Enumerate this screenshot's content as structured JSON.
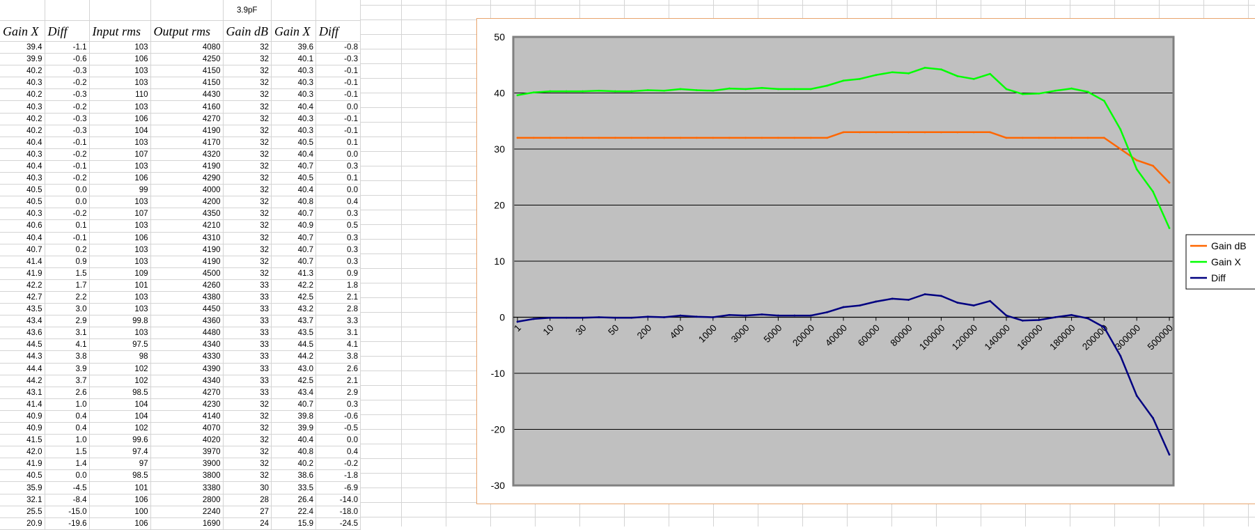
{
  "sheet": {
    "caption": "3.9pF",
    "headers": [
      "Gain X",
      "Diff",
      "Input rms",
      "Output rms",
      "Gain dB",
      "Gain X",
      "Diff"
    ],
    "rows": [
      [
        "39.4",
        "-1.1",
        "103",
        "4080",
        "32",
        "39.6",
        "-0.8"
      ],
      [
        "39.9",
        "-0.6",
        "106",
        "4250",
        "32",
        "40.1",
        "-0.3"
      ],
      [
        "40.2",
        "-0.3",
        "103",
        "4150",
        "32",
        "40.3",
        "-0.1"
      ],
      [
        "40.3",
        "-0.2",
        "103",
        "4150",
        "32",
        "40.3",
        "-0.1"
      ],
      [
        "40.2",
        "-0.3",
        "110",
        "4430",
        "32",
        "40.3",
        "-0.1"
      ],
      [
        "40.3",
        "-0.2",
        "103",
        "4160",
        "32",
        "40.4",
        "0.0"
      ],
      [
        "40.2",
        "-0.3",
        "106",
        "4270",
        "32",
        "40.3",
        "-0.1"
      ],
      [
        "40.2",
        "-0.3",
        "104",
        "4190",
        "32",
        "40.3",
        "-0.1"
      ],
      [
        "40.4",
        "-0.1",
        "103",
        "4170",
        "32",
        "40.5",
        "0.1"
      ],
      [
        "40.3",
        "-0.2",
        "107",
        "4320",
        "32",
        "40.4",
        "0.0"
      ],
      [
        "40.4",
        "-0.1",
        "103",
        "4190",
        "32",
        "40.7",
        "0.3"
      ],
      [
        "40.3",
        "-0.2",
        "106",
        "4290",
        "32",
        "40.5",
        "0.1"
      ],
      [
        "40.5",
        "0.0",
        "99",
        "4000",
        "32",
        "40.4",
        "0.0"
      ],
      [
        "40.5",
        "0.0",
        "103",
        "4200",
        "32",
        "40.8",
        "0.4"
      ],
      [
        "40.3",
        "-0.2",
        "107",
        "4350",
        "32",
        "40.7",
        "0.3"
      ],
      [
        "40.6",
        "0.1",
        "103",
        "4210",
        "32",
        "40.9",
        "0.5"
      ],
      [
        "40.4",
        "-0.1",
        "106",
        "4310",
        "32",
        "40.7",
        "0.3"
      ],
      [
        "40.7",
        "0.2",
        "103",
        "4190",
        "32",
        "40.7",
        "0.3"
      ],
      [
        "41.4",
        "0.9",
        "103",
        "4190",
        "32",
        "40.7",
        "0.3"
      ],
      [
        "41.9",
        "1.5",
        "109",
        "4500",
        "32",
        "41.3",
        "0.9"
      ],
      [
        "42.2",
        "1.7",
        "101",
        "4260",
        "33",
        "42.2",
        "1.8"
      ],
      [
        "42.7",
        "2.2",
        "103",
        "4380",
        "33",
        "42.5",
        "2.1"
      ],
      [
        "43.5",
        "3.0",
        "103",
        "4450",
        "33",
        "43.2",
        "2.8"
      ],
      [
        "43.4",
        "2.9",
        "99.8",
        "4360",
        "33",
        "43.7",
        "3.3"
      ],
      [
        "43.6",
        "3.1",
        "103",
        "4480",
        "33",
        "43.5",
        "3.1"
      ],
      [
        "44.5",
        "4.1",
        "97.5",
        "4340",
        "33",
        "44.5",
        "4.1"
      ],
      [
        "44.3",
        "3.8",
        "98",
        "4330",
        "33",
        "44.2",
        "3.8"
      ],
      [
        "44.4",
        "3.9",
        "102",
        "4390",
        "33",
        "43.0",
        "2.6"
      ],
      [
        "44.2",
        "3.7",
        "102",
        "4340",
        "33",
        "42.5",
        "2.1"
      ],
      [
        "43.1",
        "2.6",
        "98.5",
        "4270",
        "33",
        "43.4",
        "2.9"
      ],
      [
        "41.4",
        "1.0",
        "104",
        "4230",
        "32",
        "40.7",
        "0.3"
      ],
      [
        "40.9",
        "0.4",
        "104",
        "4140",
        "32",
        "39.8",
        "-0.6"
      ],
      [
        "40.9",
        "0.4",
        "102",
        "4070",
        "32",
        "39.9",
        "-0.5"
      ],
      [
        "41.5",
        "1.0",
        "99.6",
        "4020",
        "32",
        "40.4",
        "0.0"
      ],
      [
        "42.0",
        "1.5",
        "97.4",
        "3970",
        "32",
        "40.8",
        "0.4"
      ],
      [
        "41.9",
        "1.4",
        "97",
        "3900",
        "32",
        "40.2",
        "-0.2"
      ],
      [
        "40.5",
        "0.0",
        "98.5",
        "3800",
        "32",
        "38.6",
        "-1.8"
      ],
      [
        "35.9",
        "-4.5",
        "101",
        "3380",
        "30",
        "33.5",
        "-6.9"
      ],
      [
        "32.1",
        "-8.4",
        "106",
        "2800",
        "28",
        "26.4",
        "-14.0"
      ],
      [
        "25.5",
        "-15.0",
        "100",
        "2240",
        "27",
        "22.4",
        "-18.0"
      ],
      [
        "20.9",
        "-19.6",
        "106",
        "1690",
        "24",
        "15.9",
        "-24.5"
      ]
    ]
  },
  "colors": {
    "plot_bg": "#c0c0c0",
    "gain_db": "#ff6600",
    "gain_x": "#00ff00",
    "diff": "#000080",
    "chart_border": "#e8a46c"
  },
  "chart_data": {
    "type": "line",
    "ylim": [
      -30,
      50
    ],
    "yticks": [
      "50",
      "40",
      "30",
      "20",
      "10",
      "0",
      "-10",
      "-20",
      "-30"
    ],
    "xtick_labels": [
      "1",
      "10",
      "30",
      "50",
      "200",
      "400",
      "1000",
      "3000",
      "5000",
      "20000",
      "40000",
      "60000",
      "80000",
      "100000",
      "120000",
      "140000",
      "160000",
      "180000",
      "200000",
      "300000",
      "500000"
    ],
    "grid": "horizontal",
    "legend_position": "right",
    "series": [
      {
        "name": "Gain dB",
        "values": [
          32,
          32,
          32,
          32,
          32,
          32,
          32,
          32,
          32,
          32,
          32,
          32,
          32,
          32,
          32,
          32,
          32,
          32,
          32,
          32,
          33,
          33,
          33,
          33,
          33,
          33,
          33,
          33,
          33,
          33,
          32,
          32,
          32,
          32,
          32,
          32,
          32,
          30,
          28,
          27,
          24
        ]
      },
      {
        "name": "Gain X",
        "values": [
          39.6,
          40.1,
          40.3,
          40.3,
          40.3,
          40.4,
          40.3,
          40.3,
          40.5,
          40.4,
          40.7,
          40.5,
          40.4,
          40.8,
          40.7,
          40.9,
          40.7,
          40.7,
          40.7,
          41.3,
          42.2,
          42.5,
          43.2,
          43.7,
          43.5,
          44.5,
          44.2,
          43.0,
          42.5,
          43.4,
          40.7,
          39.8,
          39.9,
          40.4,
          40.8,
          40.2,
          38.6,
          33.5,
          26.4,
          22.4,
          15.9
        ]
      },
      {
        "name": "Diff",
        "values": [
          -0.8,
          -0.3,
          -0.1,
          -0.1,
          -0.1,
          0.0,
          -0.1,
          -0.1,
          0.1,
          0.0,
          0.3,
          0.1,
          0.0,
          0.4,
          0.3,
          0.5,
          0.3,
          0.3,
          0.3,
          0.9,
          1.8,
          2.1,
          2.8,
          3.3,
          3.1,
          4.1,
          3.8,
          2.6,
          2.1,
          2.9,
          0.3,
          -0.6,
          -0.5,
          0.0,
          0.4,
          -0.2,
          -1.8,
          -6.9,
          -14.0,
          -18.0,
          -24.5
        ]
      }
    ]
  }
}
